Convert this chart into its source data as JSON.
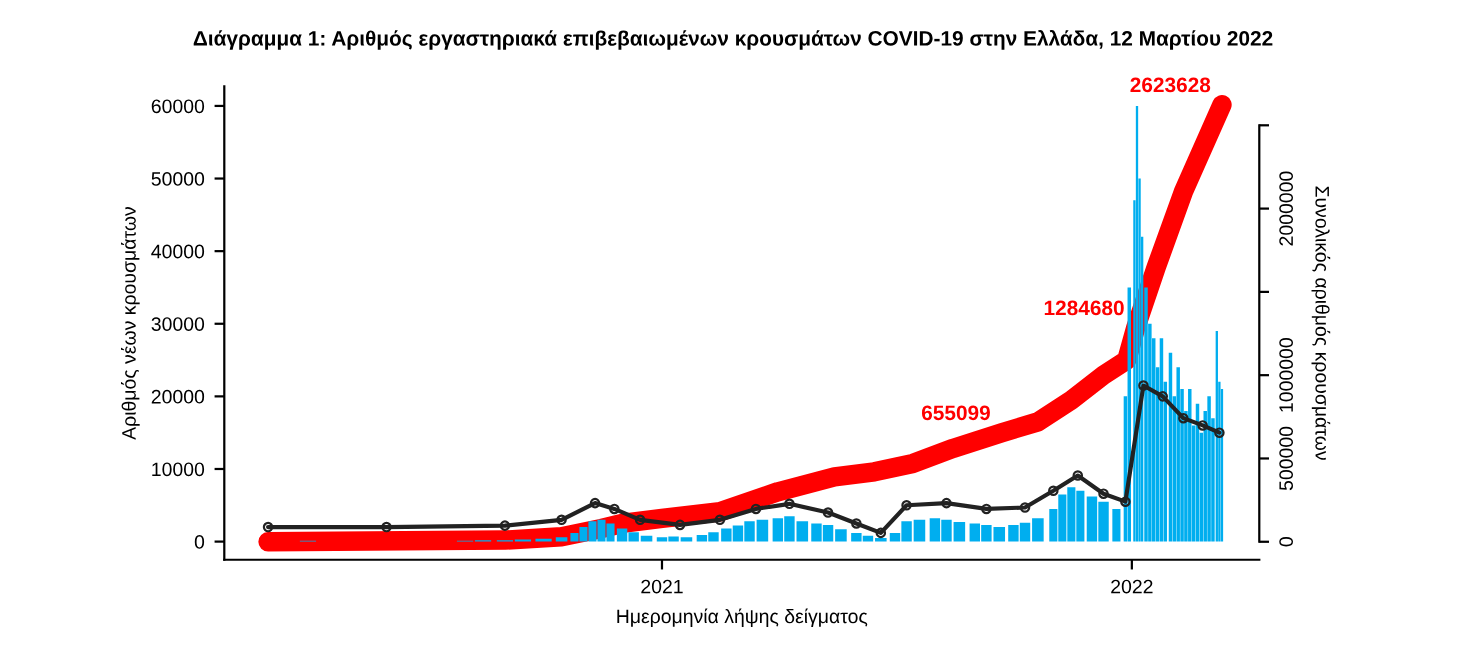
{
  "chart_data": {
    "type": "bar",
    "title": "Διάγραμμα 1: Αριθμός εργαστηριακά επιβεβαιωμένων κρουσμάτων COVID-19 στην Ελλάδα, 12 Μαρτίου 2022",
    "xlabel": "Ημερομηνία λήψης δείγματος",
    "ylabel": "Αριθμός νέων κρουσμάτων",
    "y2label": "Συνολικός αριθμός κρουσμάτων",
    "xlim": [
      "2020-01-27",
      "2022-04-10"
    ],
    "xticks": [
      {
        "value": "2021-01-01",
        "label": "2021"
      },
      {
        "value": "2022-01-01",
        "label": "2022"
      }
    ],
    "ylim": [
      -2500,
      62700
    ],
    "yticks": [
      0,
      10000,
      20000,
      30000,
      40000,
      50000,
      60000
    ],
    "y2lim": [
      -108000,
      2734000
    ],
    "y2ticks": [
      0,
      500000,
      1000000,
      {
        "value": 1500000,
        "label": null
      },
      2000000,
      {
        "value": 2500000,
        "label": null
      }
    ],
    "grid": false,
    "legend": false,
    "series": [
      {
        "color": "#00aeef",
        "x": [
          "2020-03-01",
          "2020-03-15",
          "2020-04-01",
          "2020-04-15",
          "2020-05-01",
          "2020-05-15",
          "2020-06-01",
          "2020-06-15",
          "2020-07-01",
          "2020-07-15",
          "2020-08-01",
          "2020-08-15",
          "2020-09-01",
          "2020-09-15",
          "2020-10-01",
          "2020-10-15",
          "2020-10-25",
          "2020-11-01",
          "2020-11-08",
          "2020-11-15",
          "2020-11-22",
          "2020-12-01",
          "2020-12-10",
          "2020-12-20",
          "2021-01-01",
          "2021-01-10",
          "2021-01-20",
          "2021-02-01",
          "2021-02-10",
          "2021-02-20",
          "2021-03-01",
          "2021-03-10",
          "2021-03-20",
          "2021-04-01",
          "2021-04-10",
          "2021-04-20",
          "2021-05-01",
          "2021-05-10",
          "2021-05-20",
          "2021-06-01",
          "2021-06-10",
          "2021-06-20",
          "2021-07-01",
          "2021-07-10",
          "2021-07-20",
          "2021-08-01",
          "2021-08-10",
          "2021-08-20",
          "2021-09-01",
          "2021-09-10",
          "2021-09-20",
          "2021-10-01",
          "2021-10-10",
          "2021-10-20",
          "2021-11-01",
          "2021-11-08",
          "2021-11-15",
          "2021-11-22",
          "2021-12-01",
          "2021-12-10",
          "2021-12-20",
          "2021-12-27",
          "2021-12-30",
          "2022-01-03",
          "2022-01-05",
          "2022-01-07",
          "2022-01-09",
          "2022-01-12",
          "2022-01-15",
          "2022-01-18",
          "2022-01-21",
          "2022-01-24",
          "2022-01-27",
          "2022-01-31",
          "2022-02-03",
          "2022-02-06",
          "2022-02-09",
          "2022-02-12",
          "2022-02-15",
          "2022-02-18",
          "2022-02-21",
          "2022-02-24",
          "2022-02-27",
          "2022-03-02",
          "2022-03-05",
          "2022-03-08",
          "2022-03-10",
          "2022-03-12"
        ],
        "values": [
          0,
          0,
          100,
          0,
          0,
          0,
          0,
          0,
          0,
          0,
          100,
          200,
          200,
          300,
          400,
          600,
          1200,
          2000,
          2800,
          3000,
          2500,
          1800,
          1300,
          800,
          600,
          700,
          600,
          900,
          1300,
          1800,
          2200,
          2800,
          3000,
          3200,
          3500,
          2800,
          2500,
          2300,
          1700,
          1200,
          800,
          500,
          1200,
          2800,
          3000,
          3200,
          3000,
          2700,
          2500,
          2300,
          2000,
          2300,
          2600,
          3200,
          4500,
          6500,
          7500,
          7000,
          6200,
          5500,
          4500,
          20000,
          35000,
          47000,
          60000,
          50000,
          42000,
          35000,
          30000,
          28000,
          24000,
          28000,
          22000,
          26000,
          20000,
          24000,
          21000,
          18000,
          21000,
          16000,
          19000,
          15000,
          18000,
          20000,
          17000,
          29000,
          22000,
          21000
        ]
      },
      {
        "type": "line",
        "color": "#222222",
        "marker": "circle",
        "x": [
          "2020-03-01",
          "2020-06-01",
          "2020-09-01",
          "2020-10-15",
          "2020-11-10",
          "2020-11-25",
          "2020-12-15",
          "2021-01-15",
          "2021-02-15",
          "2021-03-15",
          "2021-04-10",
          "2021-05-10",
          "2021-06-01",
          "2021-06-20",
          "2021-07-10",
          "2021-08-10",
          "2021-09-10",
          "2021-10-10",
          "2021-11-01",
          "2021-11-20",
          "2021-12-10",
          "2021-12-27",
          "2022-01-10",
          "2022-01-25",
          "2022-02-10",
          "2022-02-25",
          "2022-03-10"
        ],
        "values": [
          2000,
          2000,
          2200,
          3000,
          5300,
          4500,
          3000,
          2300,
          3000,
          4500,
          5200,
          4000,
          2500,
          1200,
          5000,
          5300,
          4500,
          4700,
          7000,
          9100,
          6600,
          5500,
          21500,
          20000,
          17000,
          16000,
          15000
        ]
      },
      {
        "type": "line",
        "axis": "y2",
        "color": "#ff0000",
        "x": [
          "2020-03-01",
          "2020-09-01",
          "2020-10-15",
          "2020-11-15",
          "2020-12-01",
          "2021-01-01",
          "2021-02-15",
          "2021-04-01",
          "2021-05-15",
          "2021-06-15",
          "2021-07-15",
          "2021-08-15",
          "2021-09-22",
          "2021-10-20",
          "2021-11-15",
          "2021-12-10",
          "2021-12-28",
          "2022-01-04",
          "2022-01-20",
          "2022-02-10",
          "2022-03-12"
        ],
        "values": [
          0,
          10000,
          30000,
          80000,
          110000,
          140000,
          180000,
          300000,
          390000,
          420000,
          470000,
          560000,
          655099,
          720000,
          850000,
          1000000,
          1090000,
          1284680,
          1650000,
          2100000,
          2623628
        ],
        "value_labels": [
          null,
          null,
          null,
          null,
          null,
          null,
          null,
          null,
          null,
          null,
          null,
          null,
          "655099",
          null,
          null,
          null,
          null,
          "1284680",
          null,
          null,
          "2623628"
        ]
      }
    ]
  }
}
